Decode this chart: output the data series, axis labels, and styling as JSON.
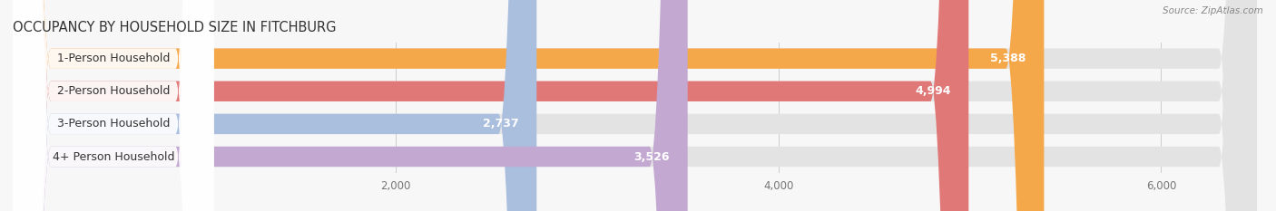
{
  "title": "OCCUPANCY BY HOUSEHOLD SIZE IN FITCHBURG",
  "source": "Source: ZipAtlas.com",
  "categories": [
    "1-Person Household",
    "2-Person Household",
    "3-Person Household",
    "4+ Person Household"
  ],
  "values": [
    5388,
    4994,
    2737,
    3526
  ],
  "bar_colors": [
    "#F5A84A",
    "#E07878",
    "#AABEDE",
    "#C3A8D1"
  ],
  "xlim": [
    0,
    6500
  ],
  "xticks": [
    2000,
    4000,
    6000
  ],
  "xtick_labels": [
    "2,000",
    "4,000",
    "6,000"
  ],
  "label_fontsize": 9,
  "value_fontsize": 9,
  "title_fontsize": 10.5,
  "background_color": "#f7f7f7",
  "bar_bg_color": "#e3e3e3",
  "bar_height": 0.62,
  "label_box_color": "#ffffff",
  "figsize": [
    14.06,
    2.33
  ]
}
